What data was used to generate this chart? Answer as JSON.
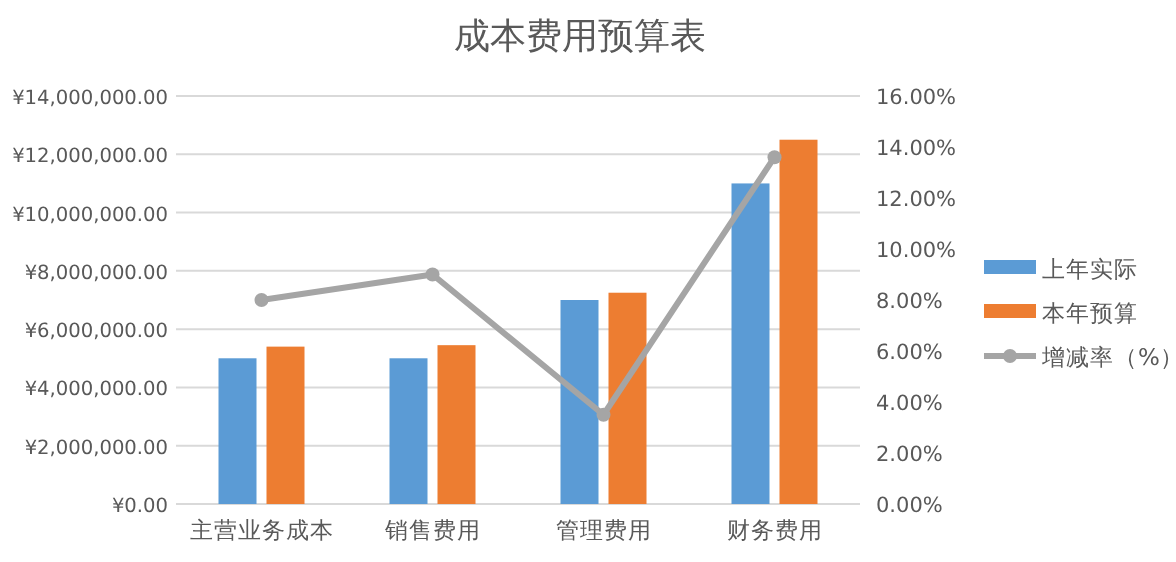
{
  "chart_data": {
    "type": "bar",
    "title": "成本费用预算表",
    "categories": [
      "主营业务成本",
      "销售费用",
      "管理费用",
      "财务费用"
    ],
    "series": [
      {
        "name": "上年实际",
        "color": "#5b9bd5",
        "values": [
          5000000,
          5000000,
          7000000,
          11000000
        ]
      },
      {
        "name": "本年预算",
        "color": "#ed7d31",
        "values": [
          5400000,
          5450000,
          7250000,
          12500000
        ]
      },
      {
        "name": "增减率（%）",
        "type": "line",
        "axis": "y2",
        "color": "#a5a5a5",
        "marker": "circle",
        "values": [
          8,
          9,
          3.5,
          13.6
        ]
      }
    ],
    "ylim": [
      0,
      14000000
    ],
    "yticks": [
      {
        "value": 0,
        "label": "¥0.00"
      },
      {
        "value": 2000000,
        "label": "¥2,000,000.00"
      },
      {
        "value": 4000000,
        "label": "¥4,000,000.00"
      },
      {
        "value": 6000000,
        "label": "¥6,000,000.00"
      },
      {
        "value": 8000000,
        "label": "¥8,000,000.00"
      },
      {
        "value": 10000000,
        "label": "¥10,000,000.00"
      },
      {
        "value": 12000000,
        "label": "¥12,000,000.00"
      },
      {
        "value": 14000000,
        "label": "¥14,000,000.00"
      }
    ],
    "y2lim": [
      0,
      16
    ],
    "y2ticks": [
      {
        "value": 0,
        "label": "0.00%"
      },
      {
        "value": 2,
        "label": "2.00%"
      },
      {
        "value": 4,
        "label": "4.00%"
      },
      {
        "value": 6,
        "label": "6.00%"
      },
      {
        "value": 8,
        "label": "8.00%"
      },
      {
        "value": 10,
        "label": "10.00%"
      },
      {
        "value": 12,
        "label": "12.00%"
      },
      {
        "value": 14,
        "label": "14.00%"
      },
      {
        "value": 16,
        "label": "16.00%"
      }
    ],
    "grid": "y",
    "legend": "right"
  }
}
